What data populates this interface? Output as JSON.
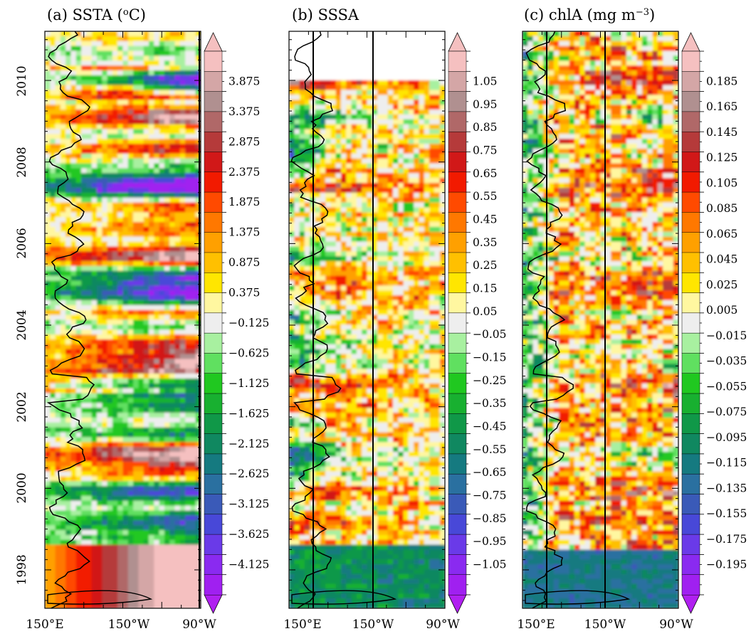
{
  "chart_data": [
    {
      "type": "heatmap",
      "panel": "a",
      "title": "(a) SSTA (°C)",
      "title_parts": {
        "prefix": "(a) SSTA (",
        "sup": "o",
        "suffix": "C)"
      },
      "x_ticks": [
        "150°E",
        "150°W",
        "90°W"
      ],
      "y_ticks": [
        "1998",
        "2000",
        "2002",
        "2004",
        "2006",
        "2008",
        "2010"
      ],
      "colorbar_labels": [
        "3.875",
        "3.375",
        "2.875",
        "2.375",
        "1.875",
        "1.375",
        "0.875",
        "0.375",
        "−0.125",
        "−0.625",
        "−1.125",
        "−1.625",
        "−2.125",
        "−2.625",
        "−3.125",
        "−3.625",
        "−4.125"
      ]
    },
    {
      "type": "heatmap",
      "panel": "b",
      "title": "(b) SSSA",
      "title_parts": {
        "prefix": "(b) SSSA",
        "sup": "",
        "suffix": ""
      },
      "x_ticks": [
        "150°E",
        "150°W",
        "90°W"
      ],
      "y_ticks": [],
      "colorbar_labels": [
        "1.05",
        "0.95",
        "0.85",
        "0.75",
        "0.65",
        "0.55",
        "0.45",
        "0.35",
        "0.25",
        "0.15",
        "0.05",
        "−0.05",
        "−0.15",
        "−0.25",
        "−0.35",
        "−0.45",
        "−0.55",
        "−0.65",
        "−0.75",
        "−0.85",
        "−0.95",
        "−1.05"
      ]
    },
    {
      "type": "heatmap",
      "panel": "c",
      "title": "(c) chlA (mg m−3)",
      "title_parts": {
        "prefix": "(c) chlA (mg m",
        "sup": "−3",
        "suffix": ")"
      },
      "x_ticks": [
        "150°E",
        "150°W",
        "90°W"
      ],
      "y_ticks": [],
      "colorbar_labels": [
        "0.185",
        "0.165",
        "0.145",
        "0.125",
        "0.105",
        "0.085",
        "0.065",
        "0.045",
        "0.025",
        "0.005",
        "−0.015",
        "−0.035",
        "−0.055",
        "−0.075",
        "−0.095",
        "−0.115",
        "−0.135",
        "−0.155",
        "−0.175",
        "−0.195"
      ]
    }
  ],
  "palette": {
    "positive": [
      "#fff7a0",
      "#ffe600",
      "#ffc000",
      "#ffa000",
      "#ff7800",
      "#ff4a00",
      "#f21a00",
      "#d11818",
      "#b53a3a",
      "#b06868",
      "#b09090",
      "#d4a6a6",
      "#f5c0c0"
    ],
    "neutral": "#eeeeee",
    "negative": [
      "#a8f0a0",
      "#60e060",
      "#20c820",
      "#18b030",
      "#109848",
      "#108860",
      "#157a80",
      "#2a70a0",
      "#3a5ab8",
      "#4848d8",
      "#6a3ae8",
      "#8a2af0",
      "#a020f0"
    ]
  }
}
